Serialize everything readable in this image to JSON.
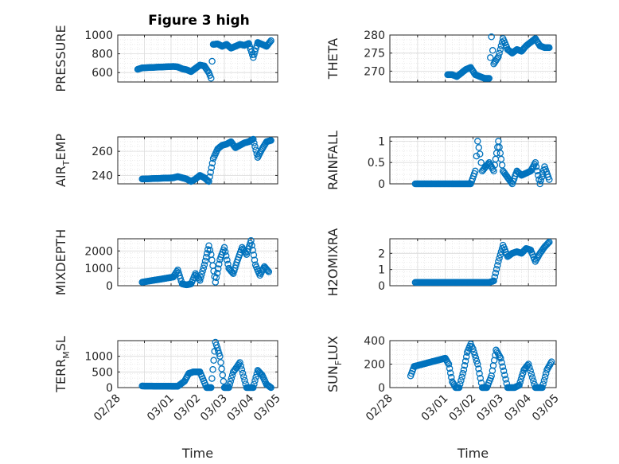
{
  "figure": {
    "title": "Figure 3 high",
    "marker_color": "#0072BD"
  },
  "chart_data": [
    {
      "type": "scatter",
      "ylabel": "PRESSURE",
      "xlabel": "",
      "x_range": [
        "02/28",
        "03/05"
      ],
      "ylim": [
        500,
        1000
      ],
      "yticks": [
        "600",
        "800",
        "1000"
      ],
      "grid": "major+minor",
      "series": [
        {
          "x": [
            "02/28 18:00",
            "02/28 22:00",
            "03/01 02:00",
            "03/01 06:00",
            "03/01 10:00",
            "03/01 14:00",
            "03/01 18:00",
            "03/01 22:00",
            "03/02 02:00",
            "03/02 06:00",
            "03/02 10:00",
            "03/02 12:00",
            "03/02 14:00",
            "03/02 18:00",
            "03/02 22:00",
            "03/03 02:00",
            "03/03 06:00",
            "03/03 10:00",
            "03/03 14:00",
            "03/03 18:00",
            "03/03 22:00",
            "03/04 02:00",
            "03/04 06:00",
            "03/04 10:00",
            "03/04 14:00",
            "03/04 18:00"
          ],
          "values": [
            635,
            650,
            665,
            660,
            640,
            630,
            610,
            645,
            680,
            670,
            600,
            540,
            900,
            905,
            880,
            900,
            860,
            880,
            900,
            890,
            910,
            760,
            920,
            900,
            880,
            940
          ]
        }
      ]
    },
    {
      "type": "scatter",
      "ylabel": "THETA",
      "xlabel": "",
      "x_range": [
        "02/28",
        "03/05"
      ],
      "ylim": [
        267,
        280
      ],
      "yticks": [
        "270",
        "275",
        "280"
      ],
      "grid": "major+minor",
      "series": [
        {
          "x": [
            "03/01 02:00",
            "03/01 06:00",
            "03/01 10:00",
            "03/01 14:00",
            "03/01 18:00",
            "03/01 22:00",
            "03/02 02:00",
            "03/02 06:00",
            "03/02 10:00",
            "03/02 14:00",
            "03/02 16:00",
            "03/02 18:00",
            "03/02 22:00",
            "03/03 02:00",
            "03/03 06:00",
            "03/03 10:00",
            "03/03 14:00",
            "03/03 18:00",
            "03/03 22:00",
            "03/04 02:00",
            "03/04 06:00",
            "03/04 10:00",
            "03/04 14:00",
            "03/04 18:00"
          ],
          "values": [
            269,
            269,
            268.5,
            269.5,
            270.5,
            271,
            269,
            268.5,
            268,
            268,
            279.5,
            272,
            274,
            279,
            276,
            275,
            276,
            275.5,
            277,
            278,
            279,
            277,
            276.5,
            276.5
          ]
        }
      ]
    },
    {
      "type": "scatter",
      "ylabel": "AIR_TEMP",
      "xlabel": "",
      "x_range": [
        "02/28",
        "03/05"
      ],
      "ylim": [
        233,
        272
      ],
      "yticks": [
        "240",
        "260"
      ],
      "grid": "major+minor",
      "series": [
        {
          "x": [
            "02/28 22:00",
            "03/01 02:00",
            "03/01 06:00",
            "03/01 10:00",
            "03/01 14:00",
            "03/01 18:00",
            "03/01 22:00",
            "03/02 02:00",
            "03/02 06:00",
            "03/02 10:00",
            "03/02 14:00",
            "03/02 18:00",
            "03/02 22:00",
            "03/03 02:00",
            "03/03 06:00",
            "03/03 10:00",
            "03/03 14:00",
            "03/03 18:00",
            "03/03 22:00",
            "03/04 02:00",
            "03/04 06:00",
            "03/04 10:00",
            "03/04 14:00",
            "03/04 18:00"
          ],
          "values": [
            237,
            238,
            239,
            238,
            237,
            235,
            237,
            240,
            238,
            235,
            254,
            262,
            265,
            266,
            268,
            263,
            265,
            267,
            268,
            270,
            255,
            262,
            268,
            269
          ]
        }
      ]
    },
    {
      "type": "scatter",
      "ylabel": "RAINFALL",
      "xlabel": "",
      "x_range": [
        "02/28",
        "03/05"
      ],
      "ylim": [
        0,
        1.1
      ],
      "yticks": [
        "0",
        "0.5",
        "1"
      ],
      "grid": "major+minor",
      "series": [
        {
          "x": [
            "02/28 22:00",
            "03/01 06:00",
            "03/01 14:00",
            "03/01 22:00",
            "03/02 02:00",
            "03/02 04:00",
            "03/02 06:00",
            "03/02 08:00",
            "03/02 14:00",
            "03/02 18:00",
            "03/02 22:00",
            "03/03 02:00",
            "03/03 10:00",
            "03/03 14:00",
            "03/03 18:00",
            "03/04 02:00",
            "03/04 06:00",
            "03/04 10:00",
            "03/04 14:00",
            "03/04 18:00"
          ],
          "values": [
            0,
            0,
            0,
            0,
            0.3,
            1,
            0.7,
            0.3,
            0.5,
            0.3,
            1,
            0.3,
            0,
            0.3,
            0.2,
            0.3,
            0.5,
            0,
            0.4,
            0.1
          ]
        }
      ]
    },
    {
      "type": "scatter",
      "ylabel": "MIXDEPTH",
      "xlabel": "",
      "x_range": [
        "02/28",
        "03/05"
      ],
      "ylim": [
        0,
        2700
      ],
      "yticks": [
        "0",
        "1000",
        "2000"
      ],
      "grid": "major+minor",
      "series": [
        {
          "x": [
            "02/28 22:00",
            "03/01 02:00",
            "03/01 06:00",
            "03/01 10:00",
            "03/01 14:00",
            "03/01 18:00",
            "03/01 22:00",
            "03/02 02:00",
            "03/02 06:00",
            "03/02 10:00",
            "03/02 12:00",
            "03/02 16:00",
            "03/02 20:00",
            "03/03 00:00",
            "03/03 04:00",
            "03/03 08:00",
            "03/03 12:00",
            "03/03 16:00",
            "03/03 20:00",
            "03/04 00:00",
            "03/04 04:00",
            "03/04 08:00",
            "03/04 12:00",
            "03/04 16:00"
          ],
          "values": [
            200,
            500,
            900,
            100,
            50,
            100,
            700,
            300,
            1200,
            2300,
            1800,
            200,
            1500,
            2200,
            1000,
            700,
            1500,
            2200,
            1800,
            2600,
            1200,
            600,
            1100,
            800
          ]
        }
      ]
    },
    {
      "type": "scatter",
      "ylabel": "H2OMIXRA",
      "xlabel": "",
      "x_range": [
        "02/28",
        "03/05"
      ],
      "ylim": [
        0,
        2.9
      ],
      "yticks": [
        "0",
        "1",
        "2"
      ],
      "grid": "major+minor",
      "series": [
        {
          "x": [
            "02/28 22:00",
            "03/01 06:00",
            "03/01 14:00",
            "03/01 22:00",
            "03/02 06:00",
            "03/02 14:00",
            "03/02 18:00",
            "03/02 22:00",
            "03/03 02:00",
            "03/03 06:00",
            "03/03 10:00",
            "03/03 14:00",
            "03/03 18:00",
            "03/03 22:00",
            "03/04 02:00",
            "03/04 06:00",
            "03/04 10:00",
            "03/04 14:00",
            "03/04 18:00"
          ],
          "values": [
            0.2,
            0.2,
            0.2,
            0.2,
            0.2,
            0.2,
            0.3,
            1.5,
            2.5,
            1.8,
            2.0,
            2.1,
            2.0,
            2.3,
            2.2,
            1.5,
            2.0,
            2.4,
            2.7
          ]
        }
      ]
    },
    {
      "type": "scatter",
      "ylabel": "TERR_MSL",
      "xlabel": "Time",
      "x_range": [
        "02/28",
        "03/05"
      ],
      "ylim": [
        0,
        1500
      ],
      "yticks": [
        "0",
        "500",
        "1000"
      ],
      "xticks": [
        "02/28",
        "03/01",
        "03/02",
        "03/03",
        "03/04",
        "03/05"
      ],
      "grid": "major+minor",
      "series": [
        {
          "x": [
            "02/28 22:00",
            "03/01 06:00",
            "03/01 12:00",
            "03/01 16:00",
            "03/01 20:00",
            "03/02 02:00",
            "03/02 08:00",
            "03/02 12:00",
            "03/02 16:00",
            "03/02 20:00",
            "03/03 00:00",
            "03/03 04:00",
            "03/03 08:00",
            "03/03 14:00",
            "03/03 20:00",
            "03/04 02:00",
            "03/04 06:00",
            "03/04 10:00",
            "03/04 14:00",
            "03/04 18:00"
          ],
          "values": [
            50,
            40,
            200,
            450,
            500,
            500,
            0,
            0,
            1450,
            1000,
            0,
            0,
            500,
            800,
            0,
            0,
            550,
            400,
            100,
            0
          ]
        }
      ]
    },
    {
      "type": "scatter",
      "ylabel": "SUN_FLUX",
      "xlabel": "Time",
      "x_range": [
        "02/28",
        "03/05"
      ],
      "ylim": [
        0,
        400
      ],
      "yticks": [
        "0",
        "200",
        "400"
      ],
      "xticks": [
        "02/28",
        "03/01",
        "03/02",
        "03/03",
        "03/04",
        "03/05"
      ],
      "grid": "major+minor",
      "series": [
        {
          "x": [
            "02/28 18:00",
            "02/28 21:00",
            "03/01 00:00",
            "03/01 03:00",
            "03/01 06:00",
            "03/01 09:00",
            "03/01 12:00",
            "03/01 16:00",
            "03/01 19:00",
            "03/01 22:00",
            "03/02 00:00",
            "03/02 04:00",
            "03/02 08:00",
            "03/02 12:00",
            "03/02 16:00",
            "03/02 20:00",
            "03/03 00:00",
            "03/03 06:00",
            "03/03 12:00",
            "03/03 16:00",
            "03/03 20:00",
            "03/04 00:00",
            "03/04 06:00",
            "03/04 12:00",
            "03/04 16:00",
            "03/04 20:00"
          ],
          "values": [
            100,
            180,
            250,
            200,
            50,
            0,
            0,
            150,
            300,
            370,
            330,
            200,
            0,
            0,
            100,
            320,
            250,
            0,
            0,
            20,
            150,
            200,
            0,
            0,
            150,
            220
          ]
        }
      ]
    }
  ]
}
